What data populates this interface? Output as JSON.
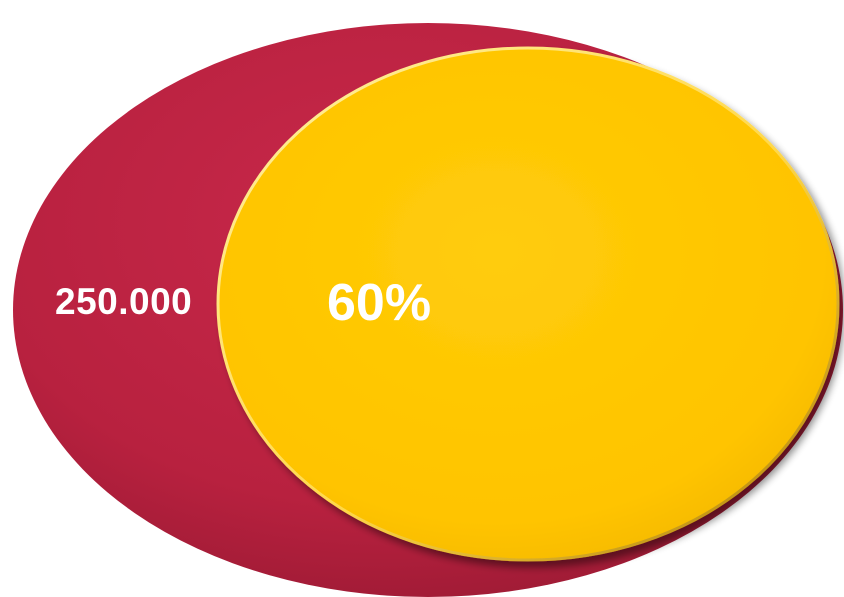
{
  "diagram": {
    "outer": {
      "label": "250.000",
      "color": "#b8213f"
    },
    "inner": {
      "label": "60%",
      "color": "#ffc400",
      "share": 0.6
    }
  }
}
